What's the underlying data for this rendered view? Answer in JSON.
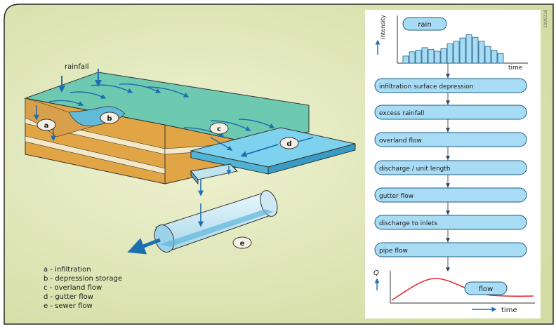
{
  "diagram": {
    "rainfall_label": "rainfall",
    "markers": [
      "a",
      "b",
      "c",
      "d",
      "e"
    ],
    "legend": [
      {
        "key": "a",
        "text": "a - infiltration"
      },
      {
        "key": "b",
        "text": "b - depression storage"
      },
      {
        "key": "c",
        "text": "c - overland flow"
      },
      {
        "key": "d",
        "text": "d - gutter flow"
      },
      {
        "key": "e",
        "text": "e - sewer flow"
      }
    ]
  },
  "hyetograph": {
    "rain_label": "rain",
    "y_label": "intensity",
    "x_label": "time",
    "bars": [
      0.22,
      0.35,
      0.4,
      0.48,
      0.42,
      0.37,
      0.45,
      0.6,
      0.68,
      0.78,
      0.88,
      0.8,
      0.68,
      0.52,
      0.4,
      0.3
    ]
  },
  "flowchart": {
    "steps": [
      "infiltration surface depression",
      "excess rainfall",
      "overland flow",
      "discharge / unit length",
      "gutter flow",
      "discharge to inlets",
      "pipe flow"
    ]
  },
  "hydrograph": {
    "y_label": "Q",
    "x_label": "time",
    "flow_label": "flow"
  },
  "corner_code": "1000316",
  "colors": {
    "background": "#dfe6b8",
    "panel": "#ffffff",
    "pill": "#a8dcf4",
    "pill_border": "#1b5d86",
    "arrow": "#1e6fb0",
    "surface": "#6ec9b1",
    "soil": "#e1a545",
    "cream": "#f3e9c8",
    "gutter": "#7fd2ee",
    "curve": "#e3232b"
  }
}
